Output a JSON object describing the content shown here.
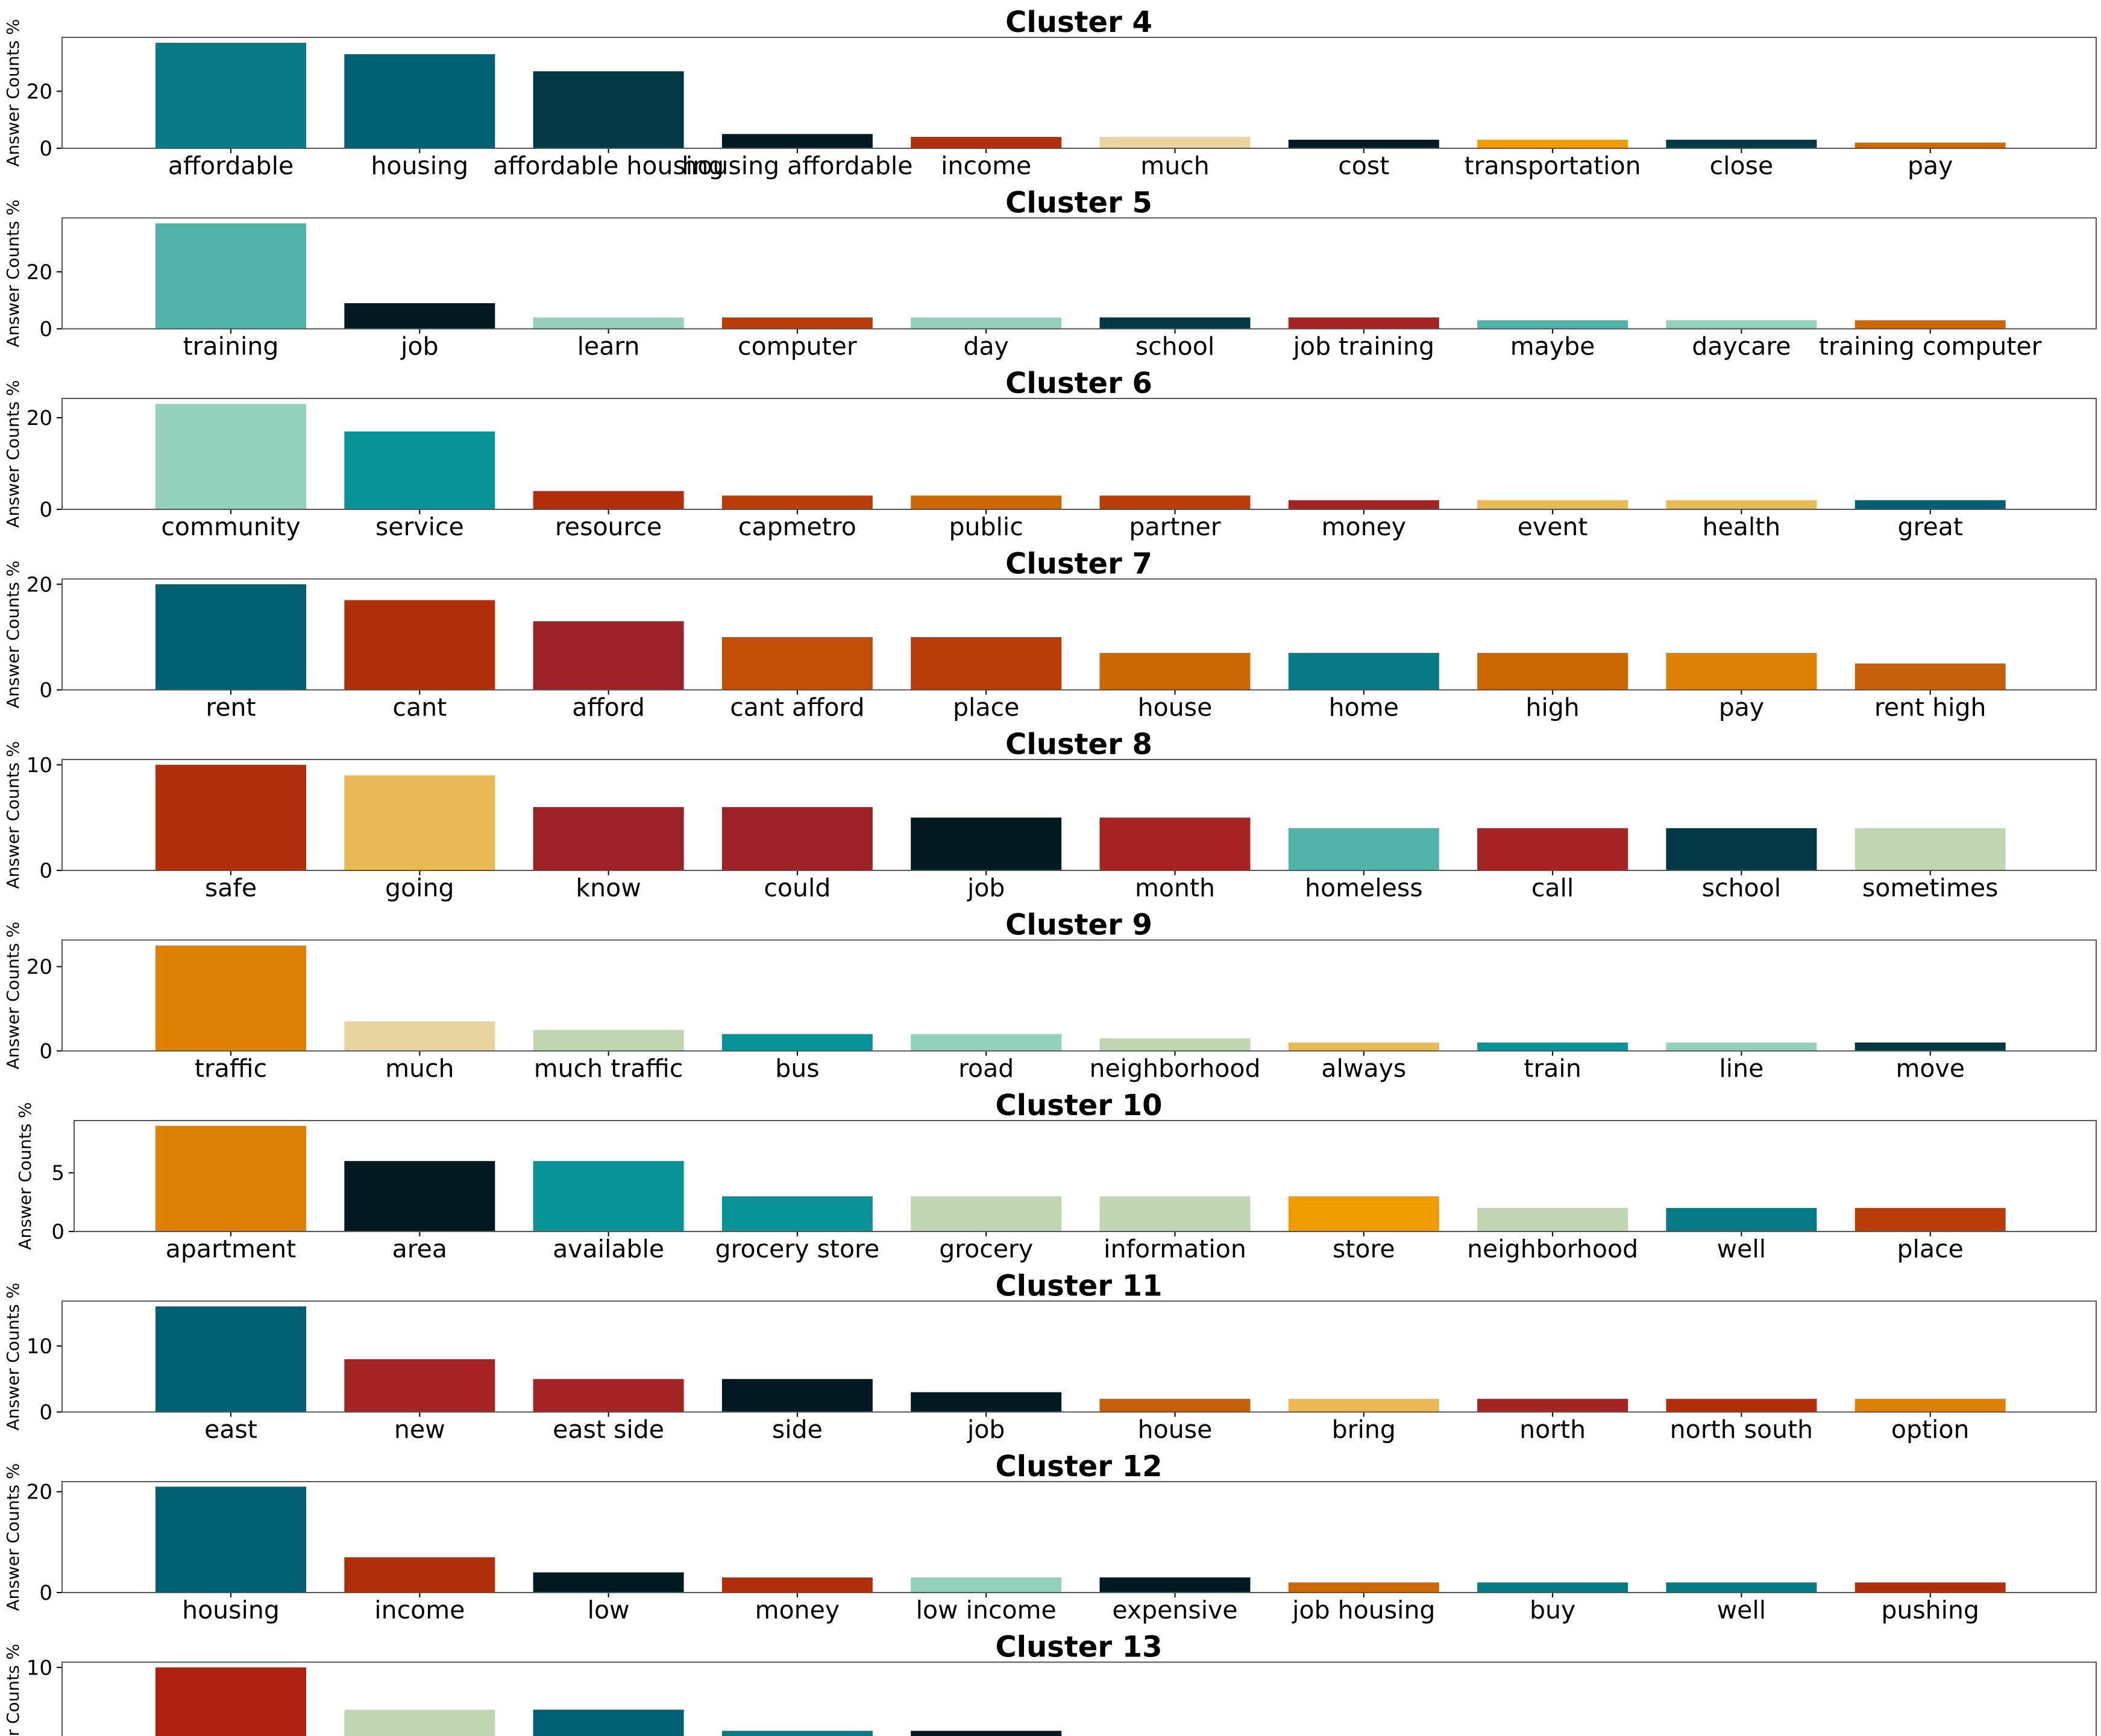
{
  "chart_data": [
    {
      "type": "bar",
      "title": "Cluster 4",
      "ylabel": "Answer Counts %",
      "ylim": [
        0,
        38.9
      ],
      "yticks": [
        0,
        20
      ],
      "categories": [
        "affordable",
        "housing",
        "affordable housing",
        "housing affordable",
        "income",
        "much",
        "cost",
        "transportation",
        "close",
        "pay"
      ],
      "values": [
        37,
        33,
        27,
        5,
        4,
        4,
        3,
        3,
        3,
        2
      ],
      "colors": [
        "#087a86",
        "#005f73",
        "#023744",
        "#011a22",
        "#b22f0c",
        "#e9d5a0",
        "#011a22",
        "#ef9c00",
        "#023744",
        "#cc6804"
      ]
    },
    {
      "type": "bar",
      "title": "Cluster 5",
      "ylabel": "Answer Counts %",
      "ylim": [
        0,
        38.9
      ],
      "yticks": [
        0,
        20
      ],
      "categories": [
        "training",
        "job",
        "learn",
        "computer",
        "day",
        "school",
        "job training",
        "maybe",
        "daycare",
        "training computer"
      ],
      "values": [
        37,
        9,
        4,
        4,
        4,
        4,
        4,
        3,
        3,
        3
      ],
      "colors": [
        "#52b3a8",
        "#011a22",
        "#94d1bc",
        "#b83d08",
        "#94d1bc",
        "#023744",
        "#a42323",
        "#52b3a8",
        "#94d1bc",
        "#cc6804"
      ]
    },
    {
      "type": "bar",
      "title": "Cluster 6",
      "ylabel": "Answer Counts %",
      "ylim": [
        0,
        24.2
      ],
      "yticks": [
        0,
        20
      ],
      "categories": [
        "community",
        "service",
        "resource",
        "capmetro",
        "public",
        "partner",
        "money",
        "event",
        "health",
        "great"
      ],
      "values": [
        23,
        17,
        4,
        3,
        3,
        3,
        2,
        2,
        2,
        2
      ],
      "colors": [
        "#94d1bc",
        "#0a9396",
        "#b22f0c",
        "#b83d08",
        "#cc6804",
        "#b83d08",
        "#a42323",
        "#e9b955",
        "#e9b955",
        "#005f73"
      ]
    },
    {
      "type": "bar",
      "title": "Cluster 7",
      "ylabel": "Answer Counts %",
      "ylim": [
        0,
        21
      ],
      "yticks": [
        0,
        20
      ],
      "categories": [
        "rent",
        "cant",
        "afford",
        "cant afford",
        "place",
        "house",
        "home",
        "high",
        "pay",
        "rent high"
      ],
      "values": [
        20,
        17,
        13,
        10,
        10,
        7,
        7,
        7,
        7,
        5
      ],
      "colors": [
        "#005f73",
        "#b22f0c",
        "#9b2226",
        "#c24f07",
        "#b83d08",
        "#cc6804",
        "#087a86",
        "#cc6804",
        "#dd8004",
        "#c55f08"
      ]
    },
    {
      "type": "bar",
      "title": "Cluster 8",
      "ylabel": "Answer Counts %",
      "ylim": [
        0,
        10.5
      ],
      "yticks": [
        0,
        10
      ],
      "categories": [
        "safe",
        "going",
        "know",
        "could",
        "job",
        "month",
        "homeless",
        "call",
        "school",
        "sometimes"
      ],
      "values": [
        10,
        9,
        6,
        6,
        5,
        5,
        4,
        4,
        4,
        4
      ],
      "colors": [
        "#b22f0c",
        "#e9b955",
        "#9b2226",
        "#9b2226",
        "#011a22",
        "#a42323",
        "#52b3a8",
        "#a42323",
        "#023744",
        "#c0d6b3"
      ]
    },
    {
      "type": "bar",
      "title": "Cluster 9",
      "ylabel": "Answer Counts %",
      "ylim": [
        0,
        26.3
      ],
      "yticks": [
        0,
        20
      ],
      "categories": [
        "traffic",
        "much",
        "much traffic",
        "bus",
        "road",
        "neighborhood",
        "always",
        "train",
        "line",
        "move"
      ],
      "values": [
        25,
        7,
        5,
        4,
        4,
        3,
        2,
        2,
        2,
        2
      ],
      "colors": [
        "#dd8004",
        "#e9d5a0",
        "#c0d6b3",
        "#0a9396",
        "#94d1bc",
        "#c0d6b3",
        "#e9b955",
        "#0a9396",
        "#94d1bc",
        "#023744"
      ]
    },
    {
      "type": "bar",
      "title": "Cluster 10",
      "ylabel": "Answer Counts %",
      "ylim": [
        0,
        9.45
      ],
      "yticks": [
        0,
        5
      ],
      "categories": [
        "apartment",
        "area",
        "available",
        "grocery store",
        "grocery",
        "information",
        "store",
        "neighborhood",
        "well",
        "place"
      ],
      "values": [
        9,
        6,
        6,
        3,
        3,
        3,
        3,
        2,
        2,
        2
      ],
      "colors": [
        "#dd8004",
        "#011a22",
        "#0a9396",
        "#0a9396",
        "#c0d6b3",
        "#c0d6b3",
        "#ef9c00",
        "#c0d6b3",
        "#087a86",
        "#b83d08"
      ]
    },
    {
      "type": "bar",
      "title": "Cluster 11",
      "ylabel": "Answer Counts %",
      "ylim": [
        0,
        16.8
      ],
      "yticks": [
        0,
        10
      ],
      "categories": [
        "east",
        "new",
        "east side",
        "side",
        "job",
        "house",
        "bring",
        "north",
        "north south",
        "option"
      ],
      "values": [
        16,
        8,
        5,
        5,
        3,
        2,
        2,
        2,
        2,
        2
      ],
      "colors": [
        "#005f73",
        "#a42323",
        "#a42323",
        "#011a22",
        "#011a22",
        "#c55f08",
        "#e9b955",
        "#a42323",
        "#b22f0c",
        "#dd8004"
      ]
    },
    {
      "type": "bar",
      "title": "Cluster 12",
      "ylabel": "Answer Counts %",
      "ylim": [
        0,
        22
      ],
      "yticks": [
        0,
        20
      ],
      "categories": [
        "housing",
        "income",
        "low",
        "money",
        "low income",
        "expensive",
        "job housing",
        "buy",
        "well",
        "pushing"
      ],
      "values": [
        21,
        7,
        4,
        3,
        3,
        3,
        2,
        2,
        2,
        2
      ],
      "colors": [
        "#005f73",
        "#b22f0c",
        "#011a22",
        "#b22f0c",
        "#94d1bc",
        "#011a22",
        "#cc6804",
        "#087a86",
        "#087a86",
        "#b22f0c"
      ]
    },
    {
      "type": "bar",
      "title": "Cluster 13",
      "ylabel": "Answer Counts %",
      "ylim": [
        0,
        10.5
      ],
      "yticks": [
        10
      ],
      "categories": [
        "",
        "",
        "",
        "",
        ""
      ],
      "values": [
        10,
        6,
        6,
        4,
        4
      ],
      "colors": [
        "#ae2012",
        "#c0d6b3",
        "#005f73",
        "#087a86",
        "#011a22"
      ]
    }
  ]
}
